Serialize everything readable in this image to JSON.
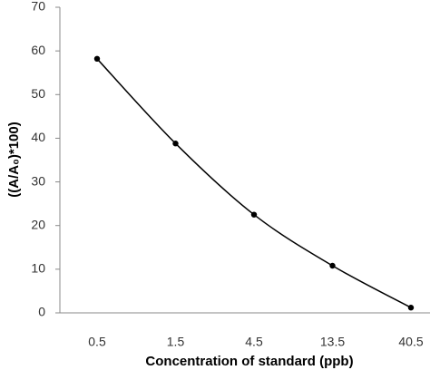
{
  "chart_data": {
    "type": "line",
    "x_label": "Concentration of standard (ppb)",
    "y_label": "((A/A₀)*100)",
    "categories": [
      "0.5",
      "1.5",
      "4.5",
      "13.5",
      "40.5"
    ],
    "values": [
      58.2,
      38.8,
      22.5,
      10.8,
      1.2
    ],
    "color": "#000000",
    "ylim": [
      0,
      70
    ],
    "yticks": [
      0,
      10,
      20,
      30,
      40,
      50,
      60,
      70
    ]
  }
}
